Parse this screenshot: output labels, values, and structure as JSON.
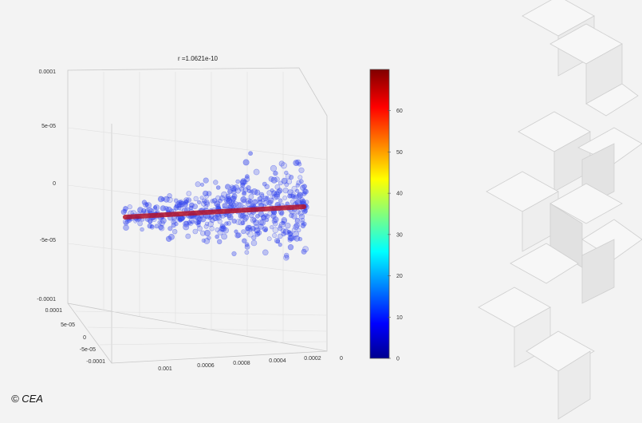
{
  "credit": "© CEA",
  "chart_data": {
    "type": "scatter",
    "title": "r =1.0621e-10",
    "y_ticks": [
      "0.0001",
      "5e-05",
      "0",
      "-5e-05",
      "-0.0001"
    ],
    "depth_ticks": [
      "0.0001",
      "5e-05",
      "0",
      "-5e-05",
      "-0.0001"
    ],
    "x_ticks": [
      "0.001",
      "0.0006",
      "0.0008",
      "0.0004",
      "0.0002",
      "0"
    ],
    "colorbar_ticks": [
      "0",
      "10",
      "20",
      "30",
      "40",
      "50",
      "60"
    ],
    "colorbar_range": [
      0,
      70
    ],
    "marker_color": "#3344ee",
    "fit_line_color": "#b3122a",
    "grid": true
  }
}
